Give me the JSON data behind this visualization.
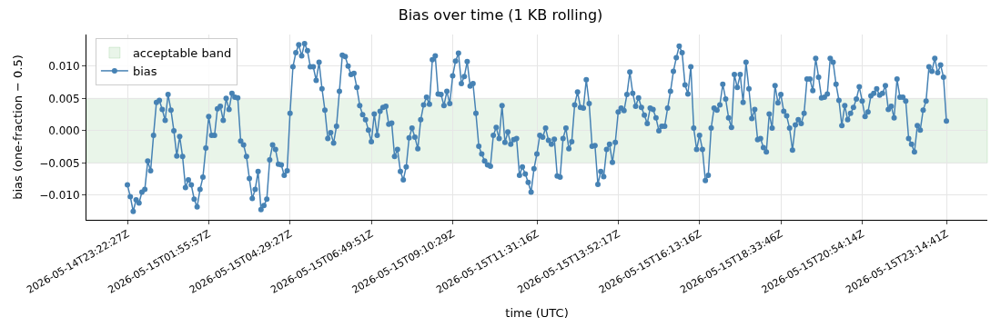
{
  "chart_data": {
    "type": "line",
    "title": "Bias over time (1 KB rolling)",
    "xlabel": "time (UTC)",
    "ylabel": "bias (one-fraction − 0.5)",
    "categories": [
      "2026-05-14T23:22:27Z",
      null,
      null,
      null,
      null,
      null,
      null,
      null,
      null,
      null,
      null,
      null,
      null,
      null,
      null,
      null,
      null,
      null,
      null,
      null,
      null,
      null,
      null,
      null,
      null,
      null,
      null,
      null,
      "2026-05-15T01:55:57Z",
      null,
      null,
      null,
      null,
      null,
      null,
      null,
      null,
      null,
      null,
      null,
      null,
      null,
      null,
      null,
      null,
      null,
      null,
      null,
      null,
      null,
      null,
      null,
      null,
      null,
      null,
      null,
      "2026-05-15T04:29:27Z",
      null,
      null,
      null,
      null,
      null,
      null,
      null,
      null,
      null,
      null,
      null,
      null,
      null,
      null,
      null,
      null,
      null,
      null,
      null,
      null,
      null,
      null,
      null,
      null,
      null,
      null,
      null,
      "2026-05-15T06:49:51Z",
      null,
      null,
      null,
      null,
      null,
      null,
      null,
      null,
      null,
      null,
      null,
      null,
      null,
      null,
      null,
      null,
      null,
      null,
      null,
      null,
      null,
      null,
      null,
      null,
      null,
      null,
      null,
      "2026-05-15T09:10:29Z",
      null,
      null,
      null,
      null,
      null,
      null,
      null,
      null,
      null,
      null,
      null,
      null,
      null,
      null,
      null,
      null,
      null,
      null,
      null,
      null,
      null,
      null,
      null,
      null,
      null,
      null,
      null,
      null,
      "2026-05-15T11:31:16Z",
      null,
      null,
      null,
      null,
      null,
      null,
      null,
      null,
      null,
      null,
      null,
      null,
      null,
      null,
      null,
      null,
      null,
      null,
      null,
      null,
      null,
      null,
      null,
      null,
      null,
      null,
      null,
      "2026-05-15T13:52:17Z",
      null,
      null,
      null,
      null,
      null,
      null,
      null,
      null,
      null,
      null,
      null,
      null,
      null,
      null,
      null,
      null,
      null,
      null,
      null,
      null,
      null,
      null,
      null,
      null,
      null,
      null,
      null,
      "2026-05-15T16:13:16Z",
      null,
      null,
      null,
      null,
      null,
      null,
      null,
      null,
      null,
      null,
      null,
      null,
      null,
      null,
      null,
      null,
      null,
      null,
      null,
      null,
      null,
      null,
      null,
      null,
      null,
      null,
      null,
      "2026-05-15T18:33:46Z",
      null,
      null,
      null,
      null,
      null,
      null,
      null,
      null,
      null,
      null,
      null,
      null,
      null,
      null,
      null,
      null,
      null,
      null,
      null,
      null,
      null,
      null,
      null,
      null,
      null,
      null,
      null,
      "2026-05-15T20:54:14Z",
      null,
      null,
      null,
      null,
      null,
      null,
      null,
      null,
      null,
      null,
      null,
      null,
      null,
      null,
      null,
      null,
      null,
      null,
      null,
      null,
      null,
      null,
      null,
      null,
      null,
      null,
      null,
      null,
      "2026-05-15T23:14:41Z"
    ],
    "series": [
      {
        "name": "bias",
        "color": "#4682b4",
        "values": [
          -0.0084,
          -0.0102,
          -0.0125,
          -0.0107,
          -0.0112,
          -0.0095,
          -0.0091,
          -0.0047,
          -0.0062,
          -0.0007,
          0.0044,
          0.0047,
          0.0033,
          0.0016,
          0.0056,
          0.0032,
          0.0,
          -0.0039,
          -0.0009,
          -0.004,
          -0.0088,
          -0.0076,
          -0.0084,
          -0.0106,
          -0.0118,
          -0.0091,
          -0.0072,
          -0.0027,
          0.0022,
          -0.0007,
          -0.0007,
          0.0034,
          0.0038,
          0.0016,
          0.005,
          0.0033,
          0.0058,
          0.0052,
          0.0051,
          -0.0016,
          -0.0022,
          -0.004,
          -0.0074,
          -0.0105,
          -0.0091,
          -0.0063,
          -0.0122,
          -0.0116,
          -0.0106,
          -0.0045,
          -0.0022,
          -0.0029,
          -0.0052,
          -0.0053,
          -0.0069,
          -0.0062,
          0.0027,
          0.0099,
          0.0121,
          0.0133,
          0.0116,
          0.0135,
          0.0124,
          0.0099,
          0.0099,
          0.0078,
          0.0106,
          0.0065,
          0.0032,
          -0.0012,
          -0.0003,
          -0.0019,
          0.0007,
          0.0061,
          0.0117,
          0.0115,
          0.01,
          0.0087,
          0.0089,
          0.0067,
          0.0039,
          0.0025,
          0.0017,
          0.0001,
          -0.0017,
          0.0026,
          -0.0007,
          0.003,
          0.0036,
          0.0038,
          0.001,
          0.0012,
          -0.004,
          -0.0029,
          -0.0063,
          -0.0076,
          -0.0056,
          -0.0011,
          0.0004,
          -0.001,
          -0.0028,
          0.0017,
          0.004,
          0.0052,
          0.0041,
          0.011,
          0.0116,
          0.0057,
          0.0056,
          0.0039,
          0.0061,
          0.0042,
          0.0085,
          0.0108,
          0.012,
          0.0073,
          0.0084,
          0.0107,
          0.0069,
          0.0073,
          0.0027,
          -0.0024,
          -0.0036,
          -0.0047,
          -0.0053,
          -0.0055,
          -0.0007,
          0.0005,
          -0.0012,
          0.0039,
          -0.0018,
          -0.0002,
          -0.0021,
          -0.0014,
          -0.0012,
          -0.0069,
          -0.0056,
          -0.0067,
          -0.008,
          -0.0095,
          -0.0059,
          -0.0036,
          -0.0007,
          -0.001,
          0.0004,
          -0.0015,
          -0.0021,
          -0.0013,
          -0.007,
          -0.0072,
          -0.0012,
          0.0004,
          -0.0028,
          -0.0017,
          0.004,
          0.006,
          0.0036,
          0.0035,
          0.0079,
          0.0042,
          -0.0024,
          -0.0023,
          -0.0083,
          -0.0063,
          -0.0071,
          -0.0029,
          -0.0021,
          -0.0049,
          -0.0018,
          0.0029,
          0.0035,
          0.0031,
          0.0056,
          0.0091,
          0.0058,
          0.0038,
          0.0051,
          0.0036,
          0.0024,
          0.0011,
          0.0035,
          0.0033,
          0.002,
          0.0,
          0.0007,
          0.0007,
          0.0035,
          0.0061,
          0.0092,
          0.0113,
          0.0131,
          0.0121,
          0.0071,
          0.0057,
          0.0099,
          0.0004,
          -0.0029,
          -0.0007,
          -0.0029,
          -0.0077,
          -0.0069,
          0.0004,
          0.0035,
          0.0032,
          0.004,
          0.0072,
          0.0049,
          0.002,
          0.0005,
          0.0087,
          0.0067,
          0.0087,
          0.0044,
          0.0106,
          0.0065,
          0.0019,
          0.0033,
          -0.0014,
          -0.0012,
          -0.0026,
          -0.0033,
          0.0026,
          0.0004,
          0.007,
          0.0043,
          0.0056,
          0.003,
          0.0023,
          0.0004,
          -0.003,
          0.0009,
          0.0017,
          0.0011,
          0.0027,
          0.008,
          0.008,
          0.0062,
          0.0112,
          0.0083,
          0.0051,
          0.0052,
          0.0057,
          0.0112,
          0.0106,
          0.0072,
          0.0047,
          0.0008,
          0.0039,
          0.0017,
          0.0027,
          0.0036,
          0.0049,
          0.0068,
          0.0046,
          0.0022,
          0.0029,
          0.0054,
          0.0058,
          0.0065,
          0.0055,
          0.0058,
          0.007,
          0.0033,
          0.0038,
          0.002,
          0.008,
          0.0052,
          0.0052,
          0.0046,
          -0.0012,
          -0.0021,
          -0.0033,
          0.0008,
          0.0001,
          0.0032,
          0.0046,
          0.0099,
          0.0092,
          0.0112,
          0.009,
          0.0102,
          0.0083,
          0.0015
        ]
      }
    ],
    "bands": [
      {
        "axis": "y",
        "from": -0.005,
        "to": 0.005,
        "label": "acceptable band",
        "color": "#2ca02c"
      }
    ],
    "ylim": [
      -0.0138,
      0.0149
    ],
    "yticks": [
      {
        "value": -0.01,
        "label": "−0.010"
      },
      {
        "value": -0.005,
        "label": "−0.005"
      },
      {
        "value": 0,
        "label": "0.000"
      },
      {
        "value": 0.005,
        "label": "0.005"
      },
      {
        "value": 0.01,
        "label": "0.010"
      }
    ],
    "grid": true,
    "legend": "top left",
    "marker": "circle",
    "line_style": "solid"
  }
}
